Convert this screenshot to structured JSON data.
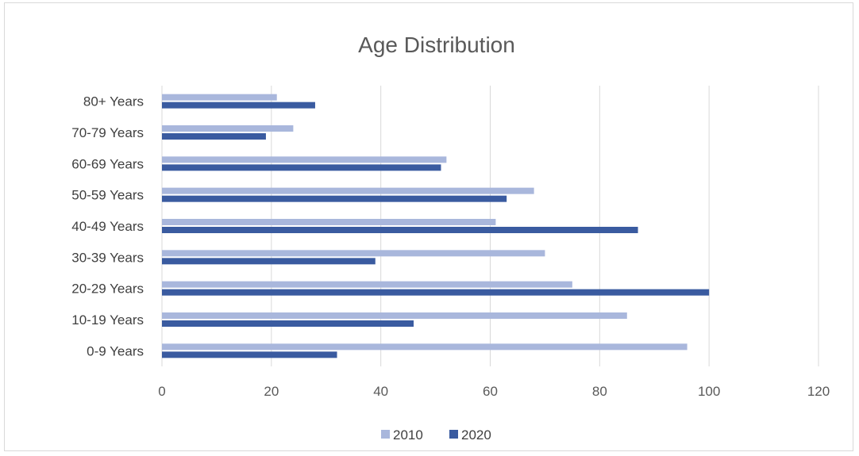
{
  "chart_data": {
    "type": "bar",
    "orientation": "horizontal",
    "title": "Age Distribution",
    "xlabel": "",
    "ylabel": "",
    "categories": [
      "0-9 Years",
      "10-19 Years",
      "20-29 Years",
      "30-39 Years",
      "40-49 Years",
      "50-59 Years",
      "60-69 Years",
      "70-79 Years",
      "80+ Years"
    ],
    "series": [
      {
        "name": "2010",
        "color": "#a9b7dc",
        "values": [
          96,
          85,
          75,
          70,
          61,
          68,
          52,
          24,
          21
        ]
      },
      {
        "name": "2020",
        "color": "#3a5ba0",
        "values": [
          32,
          46,
          100,
          39,
          87,
          63,
          51,
          19,
          28
        ]
      }
    ],
    "xlim": [
      0,
      120
    ],
    "xticks": [
      "0",
      "20",
      "40",
      "60",
      "80",
      "100",
      "120"
    ],
    "grid": true,
    "legend_position": "bottom"
  }
}
